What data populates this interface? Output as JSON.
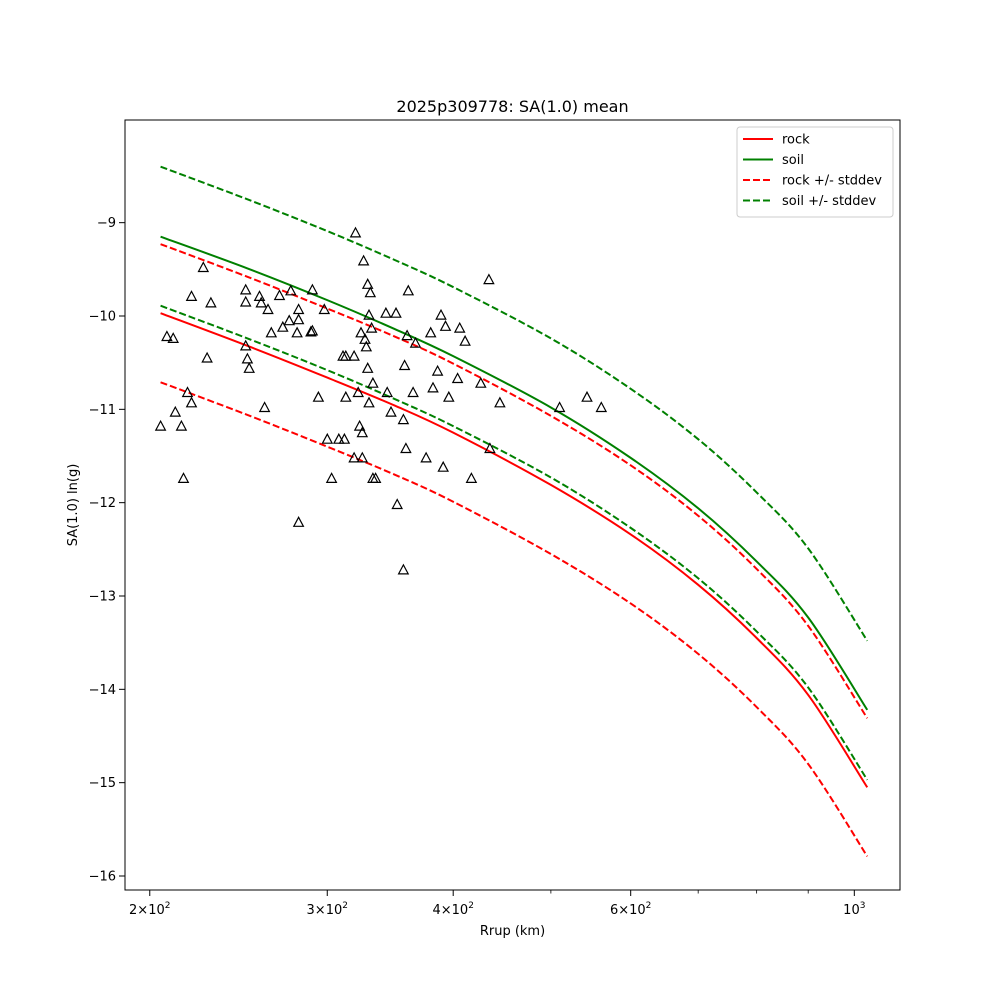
{
  "chart_data": {
    "type": "line",
    "title": "2025p309778: SA(1.0) mean",
    "xlabel": "Rrup (km)",
    "ylabel": "SA(1.0) ln(g)",
    "xscale": "log",
    "xlim": [
      189,
      1110
    ],
    "ylim": [
      -16.15,
      -7.9
    ],
    "xticks": [
      {
        "value": 200,
        "base": "2",
        "mant": "10",
        "exp": "2"
      },
      {
        "value": 300,
        "base": "3",
        "mant": "10",
        "exp": "2"
      },
      {
        "value": 400,
        "base": "4",
        "mant": "10",
        "exp": "2"
      },
      {
        "value": 600,
        "base": "6",
        "mant": "10",
        "exp": "2"
      },
      {
        "value": 1000,
        "base": "",
        "mant": "10",
        "exp": "3"
      }
    ],
    "xminor": [
      500,
      700,
      800,
      900
    ],
    "yticks": [
      {
        "value": -9,
        "label": "−9"
      },
      {
        "value": -10,
        "label": "−10"
      },
      {
        "value": -11,
        "label": "−11"
      },
      {
        "value": -12,
        "label": "−12"
      },
      {
        "value": -13,
        "label": "−13"
      },
      {
        "value": -14,
        "label": "−14"
      },
      {
        "value": -15,
        "label": "−15"
      },
      {
        "value": -16,
        "label": "−16"
      }
    ],
    "legend_position": "top-right",
    "grid": false,
    "series": [
      {
        "name": "rock",
        "color": "#ff0000",
        "dash": "solid",
        "in_legend": true,
        "x": [
          205,
          250,
          300,
          350,
          400,
          500,
          600,
          700,
          800,
          900,
          1030
        ],
        "y": [
          -9.97,
          -10.32,
          -10.66,
          -10.96,
          -11.25,
          -11.81,
          -12.34,
          -12.88,
          -13.45,
          -14.06,
          -15.05
        ]
      },
      {
        "name": "soil",
        "color": "#008000",
        "dash": "solid",
        "in_legend": true,
        "x": [
          205,
          250,
          300,
          350,
          400,
          500,
          600,
          700,
          800,
          900,
          1030
        ],
        "y": [
          -9.15,
          -9.49,
          -9.83,
          -10.14,
          -10.43,
          -10.98,
          -11.52,
          -12.06,
          -12.63,
          -13.23,
          -14.22
        ]
      },
      {
        "name": "rock +/- stddev",
        "color": "#ff0000",
        "dash": "dashed",
        "in_legend": true,
        "x": [
          205,
          250,
          300,
          350,
          400,
          500,
          600,
          700,
          800,
          900,
          1030
        ],
        "y": [
          -9.23,
          -9.58,
          -9.92,
          -10.22,
          -10.51,
          -11.07,
          -11.6,
          -12.14,
          -12.71,
          -13.32,
          -14.31
        ]
      },
      {
        "name": "rock +/- stddev (lower)",
        "color": "#ff0000",
        "dash": "dashed",
        "in_legend": false,
        "x": [
          205,
          250,
          300,
          350,
          400,
          500,
          600,
          700,
          800,
          900,
          1030
        ],
        "y": [
          -10.71,
          -11.06,
          -11.4,
          -11.7,
          -11.99,
          -12.55,
          -13.08,
          -13.62,
          -14.19,
          -14.8,
          -15.79
        ]
      },
      {
        "name": "soil +/- stddev",
        "color": "#008000",
        "dash": "dashed",
        "in_legend": true,
        "x": [
          205,
          250,
          300,
          350,
          400,
          500,
          600,
          700,
          800,
          900,
          1030
        ],
        "y": [
          -8.4,
          -8.75,
          -9.09,
          -9.4,
          -9.69,
          -10.24,
          -10.78,
          -11.32,
          -11.89,
          -12.49,
          -13.48
        ]
      },
      {
        "name": "soil +/- stddev (lower)",
        "color": "#008000",
        "dash": "dashed",
        "in_legend": false,
        "x": [
          205,
          250,
          300,
          350,
          400,
          500,
          600,
          700,
          800,
          900,
          1030
        ],
        "y": [
          -9.89,
          -10.24,
          -10.58,
          -10.89,
          -11.18,
          -11.73,
          -12.27,
          -12.81,
          -13.38,
          -13.98,
          -14.97
        ]
      }
    ],
    "observations": {
      "marker": "triangle",
      "color": "#000000",
      "points": [
        [
          205,
          -11.18
        ],
        [
          208,
          -10.22
        ],
        [
          211,
          -10.24
        ],
        [
          212,
          -11.03
        ],
        [
          215,
          -11.18
        ],
        [
          216,
          -11.74
        ],
        [
          218,
          -10.82
        ],
        [
          220,
          -9.79
        ],
        [
          220,
          -10.93
        ],
        [
          226,
          -9.48
        ],
        [
          228,
          -10.45
        ],
        [
          230,
          -9.86
        ],
        [
          249,
          -9.72
        ],
        [
          249,
          -9.85
        ],
        [
          249,
          -10.32
        ],
        [
          250,
          -10.46
        ],
        [
          251,
          -10.56
        ],
        [
          257,
          -9.79
        ],
        [
          258,
          -9.86
        ],
        [
          260,
          -10.98
        ],
        [
          262,
          -9.93
        ],
        [
          264,
          -10.18
        ],
        [
          269,
          -9.78
        ],
        [
          271,
          -10.12
        ],
        [
          275,
          -10.05
        ],
        [
          276,
          -9.73
        ],
        [
          280,
          -10.18
        ],
        [
          281,
          -9.93
        ],
        [
          281,
          -10.04
        ],
        [
          281,
          -12.21
        ],
        [
          289,
          -10.17
        ],
        [
          290,
          -10.16
        ],
        [
          290,
          -9.72
        ],
        [
          294,
          -10.87
        ],
        [
          298,
          -9.93
        ],
        [
          300,
          -11.32
        ],
        [
          303,
          -11.74
        ],
        [
          308,
          -11.32
        ],
        [
          311,
          -10.43
        ],
        [
          312,
          -11.32
        ],
        [
          313,
          -10.43
        ],
        [
          313,
          -10.87
        ],
        [
          319,
          -10.43
        ],
        [
          319,
          -11.52
        ],
        [
          320,
          -9.11
        ],
        [
          322,
          -10.82
        ],
        [
          323,
          -11.18
        ],
        [
          324,
          -10.18
        ],
        [
          325,
          -11.25
        ],
        [
          325,
          -11.52
        ],
        [
          326,
          -9.41
        ],
        [
          327,
          -10.25
        ],
        [
          328,
          -10.33
        ],
        [
          329,
          -9.66
        ],
        [
          329,
          -10.56
        ],
        [
          330,
          -9.99
        ],
        [
          330,
          -10.93
        ],
        [
          331,
          -9.75
        ],
        [
          332,
          -10.13
        ],
        [
          333,
          -10.72
        ],
        [
          333,
          -11.74
        ],
        [
          335,
          -11.74
        ],
        [
          343,
          -9.97
        ],
        [
          344,
          -10.82
        ],
        [
          347,
          -11.03
        ],
        [
          351,
          -9.97
        ],
        [
          357,
          -11.11
        ],
        [
          358,
          -10.53
        ],
        [
          359,
          -11.42
        ],
        [
          360,
          -10.21
        ],
        [
          361,
          -9.73
        ],
        [
          365,
          -10.82
        ],
        [
          367,
          -10.29
        ],
        [
          376,
          -11.52
        ],
        [
          380,
          -10.18
        ],
        [
          382,
          -10.77
        ],
        [
          386,
          -10.59
        ],
        [
          389,
          -9.99
        ],
        [
          391,
          -11.62
        ],
        [
          393,
          -10.11
        ],
        [
          396,
          -10.87
        ],
        [
          404,
          -10.67
        ],
        [
          406,
          -10.13
        ],
        [
          411,
          -10.27
        ],
        [
          417,
          -11.74
        ],
        [
          426,
          -10.72
        ],
        [
          434,
          -9.61
        ],
        [
          435,
          -11.42
        ],
        [
          445,
          -10.93
        ],
        [
          510,
          -10.98
        ],
        [
          543,
          -10.87
        ],
        [
          561,
          -10.98
        ],
        [
          352,
          -12.02
        ],
        [
          357,
          -12.72
        ]
      ]
    }
  }
}
